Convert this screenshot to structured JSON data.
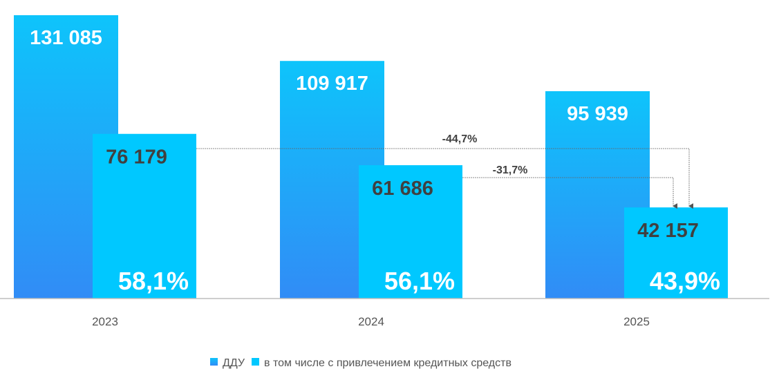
{
  "chart_data": {
    "type": "bar",
    "categories": [
      "2023",
      "2024",
      "2025"
    ],
    "series": [
      {
        "name": "ДДУ",
        "values": [
          131085,
          109917,
          95939
        ],
        "labels": [
          "131 085",
          "109 917",
          "95 939"
        ],
        "color": "#1ab4fa"
      },
      {
        "name": "в том числе с привлечением кредитных средств",
        "values": [
          76179,
          61686,
          42157
        ],
        "labels": [
          "76 179",
          "61 686",
          "42 157"
        ],
        "color": "#00c8ff"
      }
    ],
    "share_labels": [
      "58,1%",
      "56,1%",
      "43,9%"
    ],
    "annotations": [
      {
        "text": "-44,7%",
        "from": "2023",
        "to": "2025"
      },
      {
        "text": "-31,7%",
        "from": "2024",
        "to": "2025"
      }
    ],
    "legend_position": "bottom",
    "grid": false
  }
}
